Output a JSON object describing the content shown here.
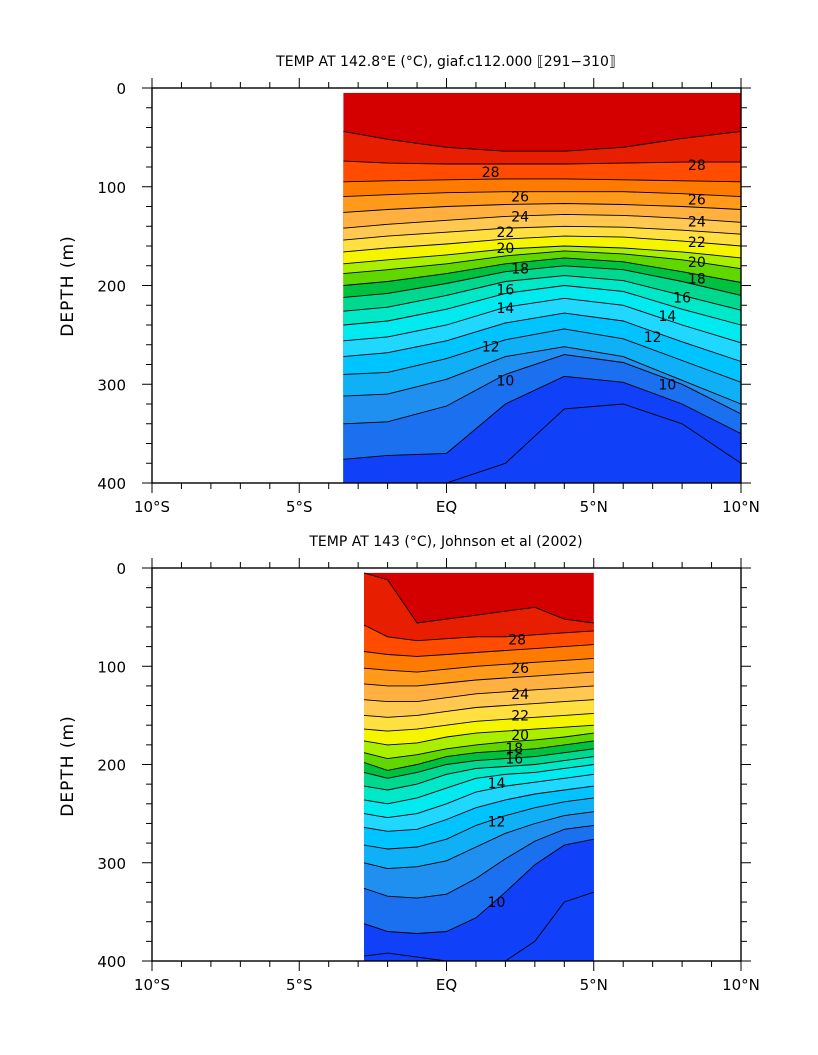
{
  "colors": {
    "bands_warm_to_cold": [
      "#d40000",
      "#e81e00",
      "#ff4c00",
      "#ff7a00",
      "#ff9a1a",
      "#ffb040",
      "#ffc850",
      "#ffe040",
      "#f5f500",
      "#aaee00",
      "#60d800",
      "#00c040",
      "#00d890",
      "#00e8c8",
      "#00eaf0",
      "#20d8ff",
      "#00c4ff",
      "#10b0f6",
      "#2090f0",
      "#1a70ee",
      "#1040f8"
    ]
  },
  "chart_data": [
    {
      "type": "contour",
      "title": "TEMP AT 142.8°E (°C), giaf.c112.000 ⟦291−310⟧",
      "xlabel": "",
      "ylabel": "DEPTH (m)",
      "xlim": [
        -10,
        10
      ],
      "ylim": [
        0,
        400
      ],
      "x_tick_labels": [
        "10°S",
        "5°S",
        "EQ",
        "5°N",
        "10°N"
      ],
      "x_ticks": [
        -10,
        -5,
        0,
        5,
        10
      ],
      "y_tick_labels": [
        "0",
        "100",
        "200",
        "300",
        "400"
      ],
      "y_ticks": [
        0,
        100,
        200,
        300,
        400
      ],
      "data_lat_range": [
        -3.5,
        10
      ],
      "data_depth_top": 5,
      "lat_samples": [
        -3.5,
        -2,
        0,
        2,
        4,
        6,
        8,
        10
      ],
      "isotherm_depths": [
        {
          "temp": 29,
          "depths": [
            44,
            52,
            60,
            64,
            64,
            60,
            51,
            44
          ]
        },
        {
          "temp": 28,
          "depths": [
            74,
            76,
            77,
            77,
            77,
            76,
            75,
            75
          ]
        },
        {
          "temp": 27,
          "depths": [
            95,
            94,
            93,
            92,
            92,
            93,
            94,
            95
          ]
        },
        {
          "temp": 26,
          "depths": [
            110,
            108,
            106,
            105,
            105,
            105,
            107,
            110
          ]
        },
        {
          "temp": 25,
          "depths": [
            126,
            123,
            120,
            118,
            117,
            118,
            120,
            123
          ]
        },
        {
          "temp": 24,
          "depths": [
            142,
            138,
            134,
            130,
            128,
            129,
            132,
            136
          ]
        },
        {
          "temp": 23,
          "depths": [
            154,
            150,
            146,
            142,
            140,
            141,
            144,
            148
          ]
        },
        {
          "temp": 22,
          "depths": [
            166,
            162,
            158,
            153,
            150,
            151,
            155,
            160
          ]
        },
        {
          "temp": 21,
          "depths": [
            178,
            174,
            169,
            163,
            160,
            162,
            166,
            172
          ]
        },
        {
          "temp": 20,
          "depths": [
            188,
            184,
            178,
            170,
            165,
            168,
            174,
            183
          ]
        },
        {
          "temp": 19,
          "depths": [
            200,
            196,
            188,
            178,
            172,
            176,
            186,
            197
          ]
        },
        {
          "temp": 18,
          "depths": [
            212,
            208,
            198,
            186,
            180,
            184,
            196,
            210
          ]
        },
        {
          "temp": 17,
          "depths": [
            226,
            222,
            210,
            196,
            190,
            195,
            210,
            225
          ]
        },
        {
          "temp": 16,
          "depths": [
            240,
            236,
            224,
            208,
            200,
            206,
            224,
            240
          ]
        },
        {
          "temp": 15,
          "depths": [
            256,
            252,
            240,
            222,
            213,
            220,
            240,
            258
          ]
        },
        {
          "temp": 14,
          "depths": [
            272,
            268,
            256,
            238,
            228,
            236,
            257,
            277
          ]
        },
        {
          "temp": 13,
          "depths": [
            290,
            288,
            274,
            255,
            244,
            254,
            276,
            298
          ]
        },
        {
          "temp": 12,
          "depths": [
            312,
            310,
            295,
            272,
            262,
            272,
            296,
            320
          ]
        },
        {
          "temp": 11,
          "depths": [
            340,
            338,
            322,
            290,
            270,
            278,
            300,
            330
          ]
        },
        {
          "temp": 10,
          "depths": [
            376,
            372,
            370,
            320,
            292,
            298,
            320,
            350
          ]
        },
        {
          "temp": 9,
          "depths": [
            410,
            410,
            405,
            380,
            325,
            320,
            340,
            380
          ]
        }
      ],
      "contour_labels": [
        {
          "text": "28",
          "lat": 1.5,
          "depth": 85
        },
        {
          "text": "28",
          "lat": 8.5,
          "depth": 78
        },
        {
          "text": "26",
          "lat": 2.5,
          "depth": 110
        },
        {
          "text": "26",
          "lat": 8.5,
          "depth": 113
        },
        {
          "text": "24",
          "lat": 2.5,
          "depth": 130
        },
        {
          "text": "24",
          "lat": 8.5,
          "depth": 135
        },
        {
          "text": "22",
          "lat": 2,
          "depth": 146
        },
        {
          "text": "22",
          "lat": 8.5,
          "depth": 156
        },
        {
          "text": "20",
          "lat": 2,
          "depth": 162
        },
        {
          "text": "20",
          "lat": 8.5,
          "depth": 176
        },
        {
          "text": "18",
          "lat": 2.5,
          "depth": 183
        },
        {
          "text": "18",
          "lat": 8.5,
          "depth": 193
        },
        {
          "text": "16",
          "lat": 2,
          "depth": 204
        },
        {
          "text": "16",
          "lat": 8,
          "depth": 212
        },
        {
          "text": "14",
          "lat": 2,
          "depth": 223
        },
        {
          "text": "14",
          "lat": 7.5,
          "depth": 231
        },
        {
          "text": "12",
          "lat": 1.5,
          "depth": 262
        },
        {
          "text": "12",
          "lat": 7,
          "depth": 252
        },
        {
          "text": "10",
          "lat": 2,
          "depth": 296
        },
        {
          "text": "10",
          "lat": 7.5,
          "depth": 300
        }
      ]
    },
    {
      "type": "contour",
      "title": "TEMP AT 143 (°C), Johnson et al (2002)",
      "xlabel": "",
      "ylabel": "DEPTH (m)",
      "xlim": [
        -10,
        10
      ],
      "ylim": [
        0,
        400
      ],
      "x_tick_labels": [
        "10°S",
        "5°S",
        "EQ",
        "5°N",
        "10°N"
      ],
      "x_ticks": [
        -10,
        -5,
        0,
        5,
        10
      ],
      "y_tick_labels": [
        "0",
        "100",
        "200",
        "300",
        "400"
      ],
      "y_ticks": [
        0,
        100,
        200,
        300,
        400
      ],
      "data_lat_range": [
        -2.8,
        5
      ],
      "data_depth_top": 5,
      "lat_samples": [
        -2.8,
        -2,
        -1,
        0,
        1,
        2,
        3,
        4,
        5
      ],
      "isotherm_depths": [
        {
          "temp": 29,
          "depths": [
            5,
            12,
            56,
            52,
            48,
            44,
            40,
            52,
            56
          ]
        },
        {
          "temp": 28,
          "depths": [
            58,
            70,
            74,
            72,
            70,
            70,
            68,
            66,
            64
          ]
        },
        {
          "temp": 27,
          "depths": [
            85,
            88,
            90,
            88,
            86,
            84,
            82,
            80,
            78
          ]
        },
        {
          "temp": 26,
          "depths": [
            102,
            104,
            106,
            103,
            100,
            98,
            96,
            94,
            92
          ]
        },
        {
          "temp": 25,
          "depths": [
            118,
            120,
            120,
            117,
            114,
            112,
            110,
            108,
            106
          ]
        },
        {
          "temp": 24,
          "depths": [
            134,
            136,
            136,
            132,
            128,
            126,
            124,
            122,
            120
          ]
        },
        {
          "temp": 23,
          "depths": [
            150,
            152,
            150,
            146,
            142,
            140,
            138,
            136,
            134
          ]
        },
        {
          "temp": 22,
          "depths": [
            164,
            166,
            164,
            160,
            156,
            154,
            152,
            150,
            148
          ]
        },
        {
          "temp": 21,
          "depths": [
            176,
            180,
            178,
            172,
            168,
            166,
            164,
            162,
            160
          ]
        },
        {
          "temp": 20,
          "depths": [
            188,
            194,
            190,
            184,
            180,
            177,
            175,
            172,
            168
          ]
        },
        {
          "temp": 19,
          "depths": [
            198,
            206,
            200,
            192,
            188,
            186,
            184,
            180,
            176
          ]
        },
        {
          "temp": 18,
          "depths": [
            208,
            214,
            208,
            200,
            196,
            194,
            192,
            188,
            184
          ]
        },
        {
          "temp": 17,
          "depths": [
            222,
            226,
            220,
            210,
            204,
            202,
            200,
            196,
            192
          ]
        },
        {
          "temp": 16,
          "depths": [
            236,
            240,
            234,
            224,
            214,
            210,
            208,
            204,
            200
          ]
        },
        {
          "temp": 15,
          "depths": [
            250,
            254,
            250,
            240,
            228,
            222,
            218,
            214,
            210
          ]
        },
        {
          "temp": 14,
          "depths": [
            264,
            268,
            266,
            256,
            244,
            236,
            230,
            226,
            222
          ]
        },
        {
          "temp": 13,
          "depths": [
            282,
            286,
            284,
            276,
            262,
            252,
            244,
            238,
            234
          ]
        },
        {
          "temp": 12,
          "depths": [
            300,
            306,
            304,
            298,
            284,
            270,
            260,
            252,
            248
          ]
        },
        {
          "temp": 11,
          "depths": [
            326,
            334,
            336,
            332,
            316,
            296,
            278,
            266,
            262
          ]
        },
        {
          "temp": 10,
          "depths": [
            362,
            370,
            372,
            370,
            356,
            330,
            302,
            282,
            276
          ]
        },
        {
          "temp": 9,
          "depths": [
            395,
            392,
            396,
            400,
            402,
            402,
            380,
            340,
            330
          ]
        }
      ],
      "contour_labels": [
        {
          "text": "28",
          "lat": 2.4,
          "depth": 73
        },
        {
          "text": "26",
          "lat": 2.5,
          "depth": 102
        },
        {
          "text": "24",
          "lat": 2.5,
          "depth": 128
        },
        {
          "text": "22",
          "lat": 2.5,
          "depth": 150
        },
        {
          "text": "20",
          "lat": 2.5,
          "depth": 170
        },
        {
          "text": "18",
          "lat": 2.3,
          "depth": 183
        },
        {
          "text": "16",
          "lat": 2.3,
          "depth": 194
        },
        {
          "text": "14",
          "lat": 1.7,
          "depth": 219
        },
        {
          "text": "12",
          "lat": 1.7,
          "depth": 258
        },
        {
          "text": "10",
          "lat": 1.7,
          "depth": 340
        }
      ]
    }
  ]
}
